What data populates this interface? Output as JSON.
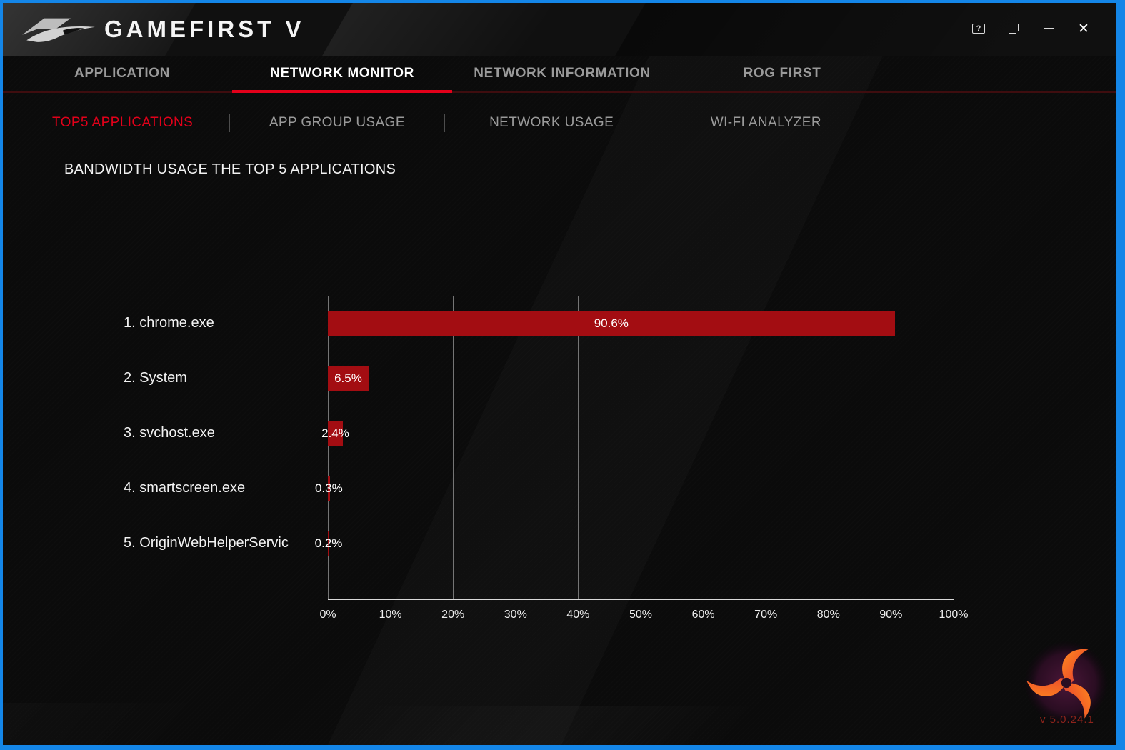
{
  "titlebar": {
    "app_title": "GAMEFIRST V",
    "controls": {
      "feedback_glyph": "?",
      "close_glyph": "✕"
    }
  },
  "nav": {
    "tabs": [
      {
        "label": "APPLICATION",
        "active": false
      },
      {
        "label": "NETWORK MONITOR",
        "active": true
      },
      {
        "label": "NETWORK INFORMATION",
        "active": false
      },
      {
        "label": "ROG FIRST",
        "active": false
      }
    ]
  },
  "subnav": {
    "tabs": [
      {
        "label": "TOP5 APPLICATIONS",
        "active": true
      },
      {
        "label": "APP GROUP USAGE",
        "active": false
      },
      {
        "label": "NETWORK USAGE",
        "active": false
      },
      {
        "label": "WI-FI ANALYZER",
        "active": false
      }
    ]
  },
  "main": {
    "section_title": "BANDWIDTH USAGE THE TOP 5 APPLICATIONS"
  },
  "chart_data": {
    "type": "bar",
    "orientation": "horizontal",
    "title": "BANDWIDTH USAGE THE TOP 5 APPLICATIONS",
    "categories": [
      "1. chrome.exe",
      "2. System",
      "3. svchost.exe",
      "4. smartscreen.exe",
      "5. OriginWebHelperServic"
    ],
    "values": [
      90.6,
      6.5,
      2.4,
      0.3,
      0.2
    ],
    "value_labels": [
      "90.6%",
      "6.5%",
      "2.4%",
      "0.3%",
      "0.2%"
    ],
    "x_ticks": [
      "0%",
      "10%",
      "20%",
      "30%",
      "40%",
      "50%",
      "60%",
      "70%",
      "80%",
      "90%",
      "100%"
    ],
    "xlim": [
      0,
      100
    ],
    "grid": true,
    "bar_color": "#a30d12",
    "legend": "none"
  },
  "footer": {
    "version": "v 5.0.24.1"
  },
  "colors": {
    "accent_red": "#e2001a",
    "bar_red": "#a30d12",
    "frame_blue": "#1486e8",
    "background": "#0b0b0b",
    "inactive_text": "#9a9a9a"
  }
}
